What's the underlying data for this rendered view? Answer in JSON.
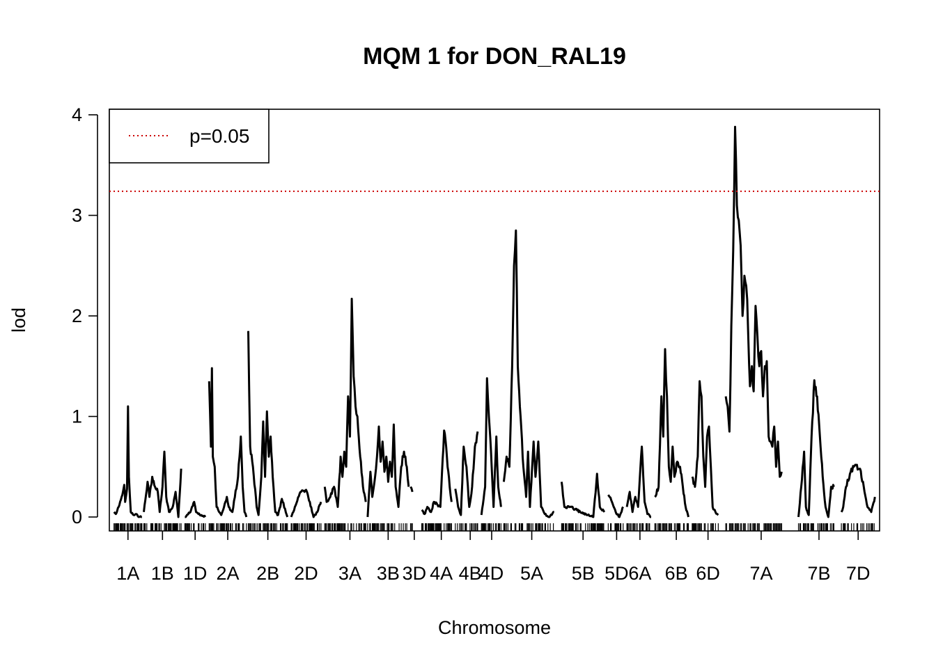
{
  "chart_data": {
    "type": "line",
    "title": "MQM 1 for DON_RAL19",
    "xlabel": "Chromosome",
    "ylabel": "lod",
    "ylim": [
      0,
      4
    ],
    "yticks": [
      0,
      1,
      2,
      3,
      4
    ],
    "grid": false,
    "legend": {
      "position": "top-left",
      "entries": [
        {
          "label": "p=0.05",
          "color": "#cc0000",
          "style": "dotted"
        }
      ]
    },
    "threshold": {
      "value": 3.24,
      "label": "p=0.05",
      "color": "#cc0000"
    },
    "line_color": "#000000",
    "chromosomes": [
      {
        "name": "1A",
        "start": 0,
        "length": 30,
        "peaks": [
          [
            0,
            0.05
          ],
          [
            2,
            0.03
          ],
          [
            5,
            0.1
          ],
          [
            9,
            0.22
          ],
          [
            11,
            0.32
          ],
          [
            12,
            0.15
          ],
          [
            14,
            0.28
          ],
          [
            15,
            1.1
          ],
          [
            16,
            0.4
          ],
          [
            18,
            0.05
          ],
          [
            21,
            0.02
          ],
          [
            24,
            0.03
          ],
          [
            27,
            0.0
          ],
          [
            30,
            0.0
          ]
        ]
      },
      {
        "name": "1B",
        "start": 32,
        "length": 40,
        "peaks": [
          [
            32,
            0.05
          ],
          [
            36,
            0.35
          ],
          [
            38,
            0.2
          ],
          [
            41,
            0.4
          ],
          [
            44,
            0.3
          ],
          [
            47,
            0.25
          ],
          [
            49,
            0.05
          ],
          [
            52,
            0.3
          ],
          [
            54,
            0.65
          ],
          [
            56,
            0.2
          ],
          [
            59,
            0.05
          ],
          [
            63,
            0.1
          ],
          [
            66,
            0.25
          ],
          [
            69,
            0.0
          ],
          [
            72,
            0.48
          ]
        ]
      },
      {
        "name": "1D",
        "start": 76,
        "length": 22,
        "peaks": [
          [
            76,
            0.0
          ],
          [
            82,
            0.05
          ],
          [
            86,
            0.15
          ],
          [
            88,
            0.05
          ],
          [
            92,
            0.02
          ],
          [
            98,
            0.0
          ]
        ]
      },
      {
        "name": "2A",
        "start": 102,
        "length": 40,
        "peaks": [
          [
            102,
            1.35
          ],
          [
            104,
            0.7
          ],
          [
            105,
            1.48
          ],
          [
            106,
            0.6
          ],
          [
            108,
            0.5
          ],
          [
            110,
            0.1
          ],
          [
            115,
            0.02
          ],
          [
            118,
            0.1
          ],
          [
            121,
            0.2
          ],
          [
            123,
            0.1
          ],
          [
            127,
            0.05
          ],
          [
            133,
            0.4
          ],
          [
            136,
            0.8
          ],
          [
            138,
            0.3
          ],
          [
            140,
            0.05
          ],
          [
            142,
            0.0
          ]
        ]
      },
      {
        "name": "2B",
        "start": 144,
        "length": 42,
        "peaks": [
          [
            144,
            1.85
          ],
          [
            146,
            0.7
          ],
          [
            149,
            0.5
          ],
          [
            153,
            0.1
          ],
          [
            155,
            0.02
          ],
          [
            158,
            0.4
          ],
          [
            160,
            0.95
          ],
          [
            162,
            0.4
          ],
          [
            164,
            1.05
          ],
          [
            166,
            0.6
          ],
          [
            168,
            0.8
          ],
          [
            171,
            0.3
          ],
          [
            173,
            0.05
          ],
          [
            176,
            0.02
          ],
          [
            180,
            0.18
          ],
          [
            186,
            0.0
          ]
        ]
      },
      {
        "name": "2D",
        "start": 190,
        "length": 32,
        "peaks": [
          [
            190,
            0.0
          ],
          [
            194,
            0.1
          ],
          [
            200,
            0.25
          ],
          [
            206,
            0.27
          ],
          [
            210,
            0.15
          ],
          [
            214,
            0.0
          ],
          [
            218,
            0.05
          ],
          [
            222,
            0.15
          ]
        ]
      },
      {
        "name": "3A",
        "start": 226,
        "length": 54,
        "peaks": [
          [
            226,
            0.3
          ],
          [
            228,
            0.15
          ],
          [
            232,
            0.2
          ],
          [
            236,
            0.3
          ],
          [
            240,
            0.1
          ],
          [
            243,
            0.6
          ],
          [
            245,
            0.4
          ],
          [
            247,
            0.65
          ],
          [
            249,
            0.5
          ],
          [
            251,
            1.2
          ],
          [
            253,
            0.8
          ],
          [
            255,
            2.17
          ],
          [
            257,
            1.4
          ],
          [
            259,
            1.1
          ],
          [
            261,
            1.0
          ],
          [
            264,
            0.6
          ],
          [
            267,
            0.3
          ],
          [
            270,
            0.15
          ]
        ]
      },
      {
        "name": "3B",
        "start": 272,
        "length": 44,
        "peaks": [
          [
            272,
            0.0
          ],
          [
            275,
            0.45
          ],
          [
            277,
            0.2
          ],
          [
            280,
            0.4
          ],
          [
            282,
            0.6
          ],
          [
            284,
            0.9
          ],
          [
            286,
            0.55
          ],
          [
            288,
            0.75
          ],
          [
            290,
            0.45
          ],
          [
            292,
            0.6
          ],
          [
            294,
            0.35
          ],
          [
            296,
            0.55
          ],
          [
            298,
            0.4
          ],
          [
            300,
            0.92
          ],
          [
            302,
            0.3
          ],
          [
            305,
            0.1
          ],
          [
            308,
            0.5
          ],
          [
            311,
            0.65
          ],
          [
            314,
            0.5
          ],
          [
            316,
            0.3
          ]
        ]
      },
      {
        "name": "3D",
        "start": 318,
        "length": 8,
        "peaks": [
          [
            318,
            0.3
          ],
          [
            320,
            0.25
          ]
        ]
      },
      {
        "name": "4A",
        "start": 330,
        "length": 42,
        "peaks": [
          [
            330,
            0.07
          ],
          [
            333,
            0.03
          ],
          [
            336,
            0.1
          ],
          [
            340,
            0.05
          ],
          [
            343,
            0.15
          ],
          [
            347,
            0.12
          ],
          [
            350,
            0.1
          ],
          [
            354,
            0.86
          ],
          [
            357,
            0.6
          ],
          [
            360,
            0.3
          ],
          [
            362,
            0.15
          ]
        ]
      },
      {
        "name": "4B",
        "start": 366,
        "length": 32,
        "peaks": [
          [
            366,
            0.28
          ],
          [
            369,
            0.1
          ],
          [
            372,
            0.02
          ],
          [
            375,
            0.7
          ],
          [
            378,
            0.5
          ],
          [
            381,
            0.1
          ],
          [
            384,
            0.3
          ],
          [
            387,
            0.7
          ],
          [
            390,
            0.85
          ]
        ]
      },
      {
        "name": "4D",
        "start": 394,
        "length": 22,
        "peaks": [
          [
            394,
            0.02
          ],
          [
            398,
            0.3
          ],
          [
            400,
            1.38
          ],
          [
            402,
            1.0
          ],
          [
            405,
            0.5
          ],
          [
            407,
            0.1
          ],
          [
            410,
            0.8
          ],
          [
            412,
            0.3
          ],
          [
            415,
            0.1
          ]
        ]
      },
      {
        "name": "5A",
        "start": 418,
        "length": 60,
        "peaks": [
          [
            418,
            0.35
          ],
          [
            421,
            0.6
          ],
          [
            424,
            0.5
          ],
          [
            427,
            1.5
          ],
          [
            429,
            2.5
          ],
          [
            431,
            2.85
          ],
          [
            433,
            1.5
          ],
          [
            436,
            1.0
          ],
          [
            439,
            0.5
          ],
          [
            442,
            0.2
          ],
          [
            444,
            0.65
          ],
          [
            446,
            0.1
          ],
          [
            450,
            0.75
          ],
          [
            452,
            0.4
          ],
          [
            455,
            0.75
          ],
          [
            458,
            0.1
          ],
          [
            462,
            0.03
          ],
          [
            467,
            0.0
          ],
          [
            472,
            0.05
          ]
        ]
      },
      {
        "name": "5B",
        "start": 480,
        "length": 46,
        "peaks": [
          [
            480,
            0.35
          ],
          [
            483,
            0.1
          ],
          [
            490,
            0.1
          ],
          [
            500,
            0.05
          ],
          [
            508,
            0.02
          ],
          [
            514,
            0.0
          ],
          [
            518,
            0.43
          ],
          [
            521,
            0.1
          ],
          [
            526,
            0.05
          ]
        ]
      },
      {
        "name": "5D",
        "start": 530,
        "length": 18,
        "peaks": [
          [
            530,
            0.22
          ],
          [
            534,
            0.15
          ],
          [
            538,
            0.05
          ],
          [
            542,
            0.0
          ],
          [
            546,
            0.1
          ]
        ]
      },
      {
        "name": "6A",
        "start": 550,
        "length": 28,
        "peaks": [
          [
            550,
            0.1
          ],
          [
            553,
            0.25
          ],
          [
            556,
            0.05
          ],
          [
            559,
            0.2
          ],
          [
            562,
            0.1
          ],
          [
            566,
            0.7
          ],
          [
            569,
            0.15
          ],
          [
            572,
            0.03
          ],
          [
            576,
            0.0
          ]
        ]
      },
      {
        "name": "6B",
        "start": 580,
        "length": 46,
        "peaks": [
          [
            580,
            0.2
          ],
          [
            584,
            0.3
          ],
          [
            587,
            1.2
          ],
          [
            589,
            0.8
          ],
          [
            591,
            1.67
          ],
          [
            593,
            1.2
          ],
          [
            595,
            0.5
          ],
          [
            597,
            0.35
          ],
          [
            599,
            0.7
          ],
          [
            601,
            0.4
          ],
          [
            604,
            0.55
          ],
          [
            607,
            0.5
          ],
          [
            610,
            0.3
          ],
          [
            613,
            0.1
          ],
          [
            616,
            0.0
          ]
        ]
      },
      {
        "name": "6D",
        "start": 620,
        "length": 34,
        "peaks": [
          [
            620,
            0.4
          ],
          [
            623,
            0.3
          ],
          [
            626,
            0.6
          ],
          [
            628,
            1.35
          ],
          [
            630,
            1.2
          ],
          [
            632,
            0.6
          ],
          [
            634,
            0.3
          ],
          [
            636,
            0.8
          ],
          [
            638,
            0.9
          ],
          [
            640,
            0.5
          ],
          [
            642,
            0.1
          ],
          [
            645,
            0.05
          ],
          [
            648,
            0.02
          ]
        ]
      },
      {
        "name": "7A",
        "start": 656,
        "length": 76,
        "peaks": [
          [
            656,
            1.2
          ],
          [
            658,
            1.1
          ],
          [
            660,
            0.85
          ],
          [
            662,
            1.9
          ],
          [
            664,
            2.65
          ],
          [
            666,
            3.88
          ],
          [
            668,
            3.1
          ],
          [
            670,
            2.95
          ],
          [
            672,
            2.7
          ],
          [
            674,
            2.0
          ],
          [
            676,
            2.4
          ],
          [
            678,
            2.3
          ],
          [
            680,
            1.85
          ],
          [
            682,
            1.3
          ],
          [
            684,
            1.5
          ],
          [
            686,
            1.25
          ],
          [
            688,
            2.1
          ],
          [
            690,
            1.8
          ],
          [
            692,
            1.5
          ],
          [
            694,
            1.65
          ],
          [
            696,
            1.2
          ],
          [
            698,
            1.5
          ],
          [
            700,
            1.55
          ],
          [
            702,
            0.8
          ],
          [
            704,
            0.75
          ],
          [
            706,
            0.7
          ],
          [
            708,
            0.9
          ],
          [
            710,
            0.5
          ],
          [
            712,
            0.75
          ],
          [
            714,
            0.4
          ],
          [
            716,
            0.45
          ]
        ]
      },
      {
        "name": "7B",
        "start": 734,
        "length": 44,
        "peaks": [
          [
            734,
            0.0
          ],
          [
            737,
            0.3
          ],
          [
            740,
            0.65
          ],
          [
            742,
            0.1
          ],
          [
            745,
            0.02
          ],
          [
            748,
            0.8
          ],
          [
            751,
            1.36
          ],
          [
            754,
            1.2
          ],
          [
            757,
            0.8
          ],
          [
            760,
            0.4
          ],
          [
            763,
            0.1
          ],
          [
            766,
            0.0
          ],
          [
            769,
            0.3
          ],
          [
            772,
            0.3
          ]
        ]
      },
      {
        "name": "7D",
        "start": 780,
        "length": 36,
        "peaks": [
          [
            780,
            0.05
          ],
          [
            782,
            0.1
          ],
          [
            785,
            0.3
          ],
          [
            790,
            0.45
          ],
          [
            795,
            0.52
          ],
          [
            800,
            0.48
          ],
          [
            804,
            0.3
          ],
          [
            808,
            0.1
          ],
          [
            812,
            0.05
          ],
          [
            816,
            0.2
          ]
        ]
      }
    ]
  }
}
